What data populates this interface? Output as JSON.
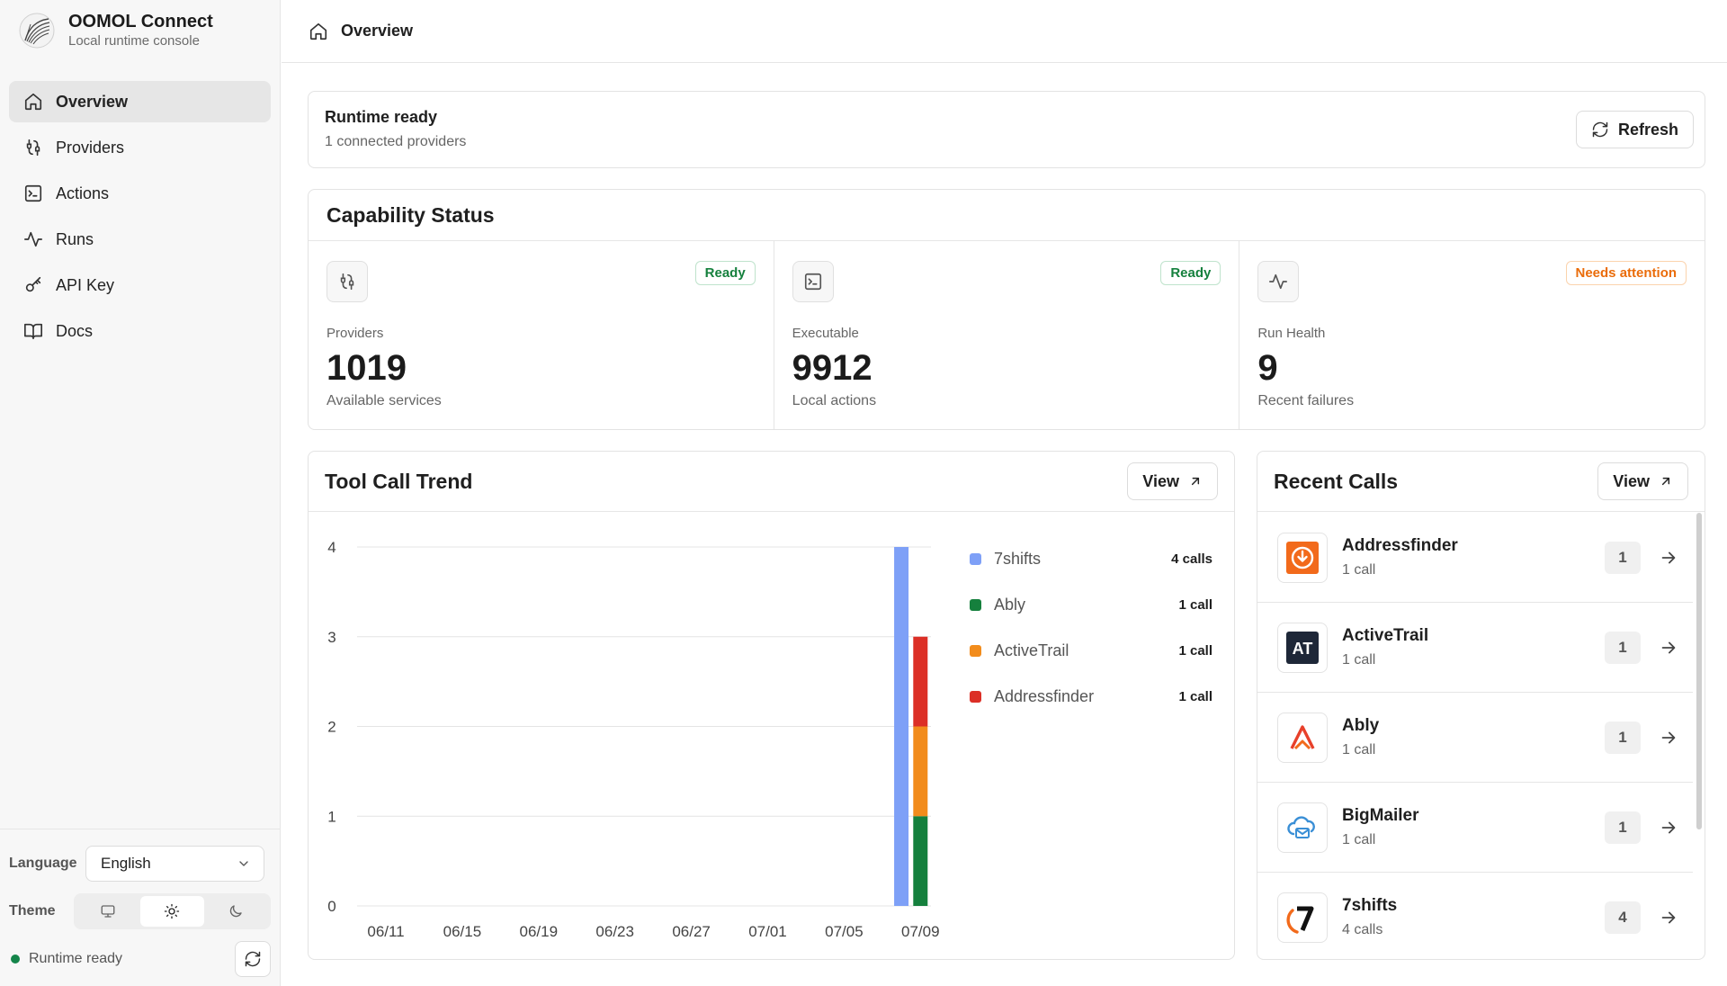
{
  "brand": {
    "title": "OOMOL Connect",
    "subtitle": "Local runtime console"
  },
  "nav": [
    {
      "label": "Overview",
      "icon": "home-icon",
      "active": true
    },
    {
      "label": "Providers",
      "icon": "providers-icon"
    },
    {
      "label": "Actions",
      "icon": "terminal-icon"
    },
    {
      "label": "Runs",
      "icon": "activity-icon"
    },
    {
      "label": "API Key",
      "icon": "key-icon"
    },
    {
      "label": "Docs",
      "icon": "book-icon"
    }
  ],
  "sidebar_bottom": {
    "language_label": "Language",
    "language_value": "English",
    "theme_label": "Theme",
    "theme_selected": "light",
    "status_text": "Runtime ready"
  },
  "topbar": {
    "crumb": "Overview"
  },
  "runtime": {
    "title": "Runtime ready",
    "subtitle": "1 connected providers",
    "refresh_label": "Refresh"
  },
  "capability": {
    "title": "Capability Status",
    "items": [
      {
        "label": "Providers",
        "value": "1019",
        "desc": "Available services",
        "badge": "Ready"
      },
      {
        "label": "Executable",
        "value": "9912",
        "desc": "Local actions",
        "badge": "Ready"
      },
      {
        "label": "Run Health",
        "value": "9",
        "desc": "Recent failures",
        "badge": "Needs attention"
      }
    ]
  },
  "trend": {
    "title": "Tool Call Trend",
    "view_label": "View",
    "legend": [
      {
        "name": "7shifts",
        "value": "4 calls",
        "color": "#7ea0f7"
      },
      {
        "name": "Ably",
        "value": "1 call",
        "color": "#15803d"
      },
      {
        "name": "ActiveTrail",
        "value": "1 call",
        "color": "#f28c1c"
      },
      {
        "name": "Addressfinder",
        "value": "1 call",
        "color": "#dc2f26"
      }
    ]
  },
  "chart_data": {
    "type": "bar",
    "stacked": true,
    "x_ticks": [
      "06/11",
      "06/15",
      "06/19",
      "06/23",
      "06/27",
      "07/01",
      "07/05",
      "07/09"
    ],
    "y_ticks": [
      "0",
      "1",
      "2",
      "3",
      "4"
    ],
    "ylim": [
      0,
      4
    ],
    "grid": true,
    "legend_position": "right",
    "bars": [
      {
        "date": "07/08",
        "segments": [
          {
            "series": "7shifts",
            "value": 4
          }
        ]
      },
      {
        "date": "07/09",
        "segments": [
          {
            "series": "Ably",
            "value": 1
          },
          {
            "series": "ActiveTrail",
            "value": 1
          },
          {
            "series": "Addressfinder",
            "value": 1
          }
        ]
      }
    ],
    "series": [
      {
        "name": "7shifts",
        "color": "#7ea0f7"
      },
      {
        "name": "Ably",
        "color": "#15803d"
      },
      {
        "name": "ActiveTrail",
        "color": "#f28c1c"
      },
      {
        "name": "Addressfinder",
        "color": "#dc2f26"
      }
    ]
  },
  "recent": {
    "title": "Recent Calls",
    "view_label": "View",
    "items": [
      {
        "name": "Addressfinder",
        "calls": "1 call",
        "count": "1",
        "icon": "addressfinder-logo-icon"
      },
      {
        "name": "ActiveTrail",
        "calls": "1 call",
        "count": "1",
        "icon": "activetrail-logo-icon"
      },
      {
        "name": "Ably",
        "calls": "1 call",
        "count": "1",
        "icon": "ably-logo-icon"
      },
      {
        "name": "BigMailer",
        "calls": "1 call",
        "count": "1",
        "icon": "bigmailer-logo-icon"
      },
      {
        "name": "7shifts",
        "calls": "4 calls",
        "count": "4",
        "icon": "7shifts-logo-icon"
      }
    ]
  }
}
